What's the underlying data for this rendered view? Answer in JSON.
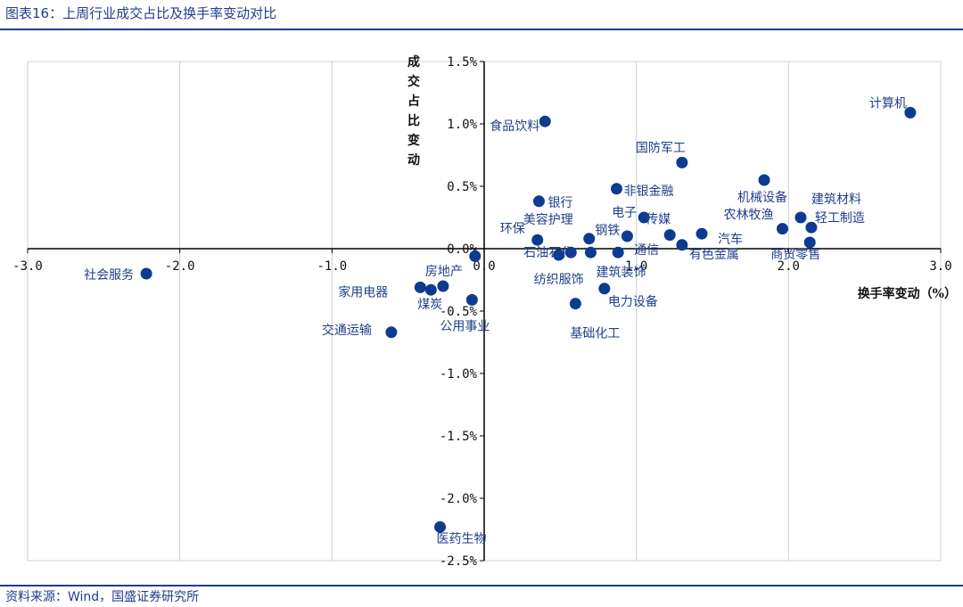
{
  "figure": {
    "title": "图表16：上周行业成交占比及换手率变动对比",
    "source": "资料来源：Wind，国盛证券研究所"
  },
  "colors": {
    "brand": "#1f3e8c",
    "point": "#0d3b8f",
    "grid": "#d0d0d0"
  },
  "chart_data": {
    "type": "scatter",
    "xlabel": "换手率变动（%）",
    "ylabel": "成交占比变动",
    "xlim": [
      -3.0,
      3.0
    ],
    "ylim": [
      -2.5,
      1.5
    ],
    "xticks": [
      -3.0,
      -2.0,
      -1.0,
      0.0,
      1.0,
      2.0,
      3.0
    ],
    "xtick_labels": [
      "-3.0",
      "-2.0",
      "-1.0",
      "0.0",
      "1.0",
      "2.0",
      "3.0"
    ],
    "yticks": [
      1.5,
      1.0,
      0.5,
      0.0,
      -0.5,
      -1.0,
      -1.5,
      -2.0,
      -2.5
    ],
    "ytick_labels": [
      "1.5%",
      "1.0%",
      "0.5%",
      "0.0%",
      "-0.5%",
      "-1.0%",
      "-1.5%",
      "-2.0%",
      "-2.5%"
    ],
    "grid": "vertical",
    "points": [
      {
        "name": "计算机",
        "x": 2.8,
        "y": 1.09
      },
      {
        "name": "食品饮料",
        "x": 0.4,
        "y": 1.02
      },
      {
        "name": "国防军工",
        "x": 1.3,
        "y": 0.69
      },
      {
        "name": "机械设备",
        "x": 1.84,
        "y": 0.55
      },
      {
        "name": "非银金融",
        "x": 0.87,
        "y": 0.48
      },
      {
        "name": "银行",
        "x": 0.36,
        "y": 0.38
      },
      {
        "name": "建筑材料",
        "x": 2.08,
        "y": 0.25
      },
      {
        "name": "电子",
        "x": 1.05,
        "y": 0.25
      },
      {
        "name": "轻工制造",
        "x": 2.15,
        "y": 0.17
      },
      {
        "name": "农林牧渔",
        "x": 1.96,
        "y": 0.16
      },
      {
        "name": "汽车",
        "x": 1.43,
        "y": 0.12
      },
      {
        "name": "传媒",
        "x": 1.22,
        "y": 0.11
      },
      {
        "name": "钢铁",
        "x": 0.94,
        "y": 0.1
      },
      {
        "name": "美容护理",
        "x": 0.69,
        "y": 0.08
      },
      {
        "name": "环保",
        "x": 0.35,
        "y": 0.07
      },
      {
        "name": "商贸零售",
        "x": 2.14,
        "y": 0.05
      },
      {
        "name": "有色金属",
        "x": 1.3,
        "y": 0.03
      },
      {
        "name": "通信",
        "x": 0.88,
        "y": -0.03
      },
      {
        "name": "建筑装饰",
        "x": 0.7,
        "y": -0.03
      },
      {
        "name": "石油石化",
        "x": 0.57,
        "y": -0.03
      },
      {
        "name": "纺织服饰",
        "x": 0.49,
        "y": -0.05
      },
      {
        "name": "基础化工",
        "x": -0.06,
        "y": -0.06
      },
      {
        "name": "电力设备",
        "x": 0.79,
        "y": -0.32
      },
      {
        "name": "房地产",
        "x": -0.27,
        "y": -0.3
      },
      {
        "name": "家用电器",
        "x": -0.42,
        "y": -0.31
      },
      {
        "name": "煤炭",
        "x": -0.35,
        "y": -0.33
      },
      {
        "name": "公用事业",
        "x": -0.08,
        "y": -0.41
      },
      {
        "name": "基础化工",
        "x": 0.6,
        "y": -0.44
      },
      {
        "name": "社会服务",
        "x": -2.22,
        "y": -0.2
      },
      {
        "name": "交通运输",
        "x": -0.61,
        "y": -0.67
      },
      {
        "name": "医药生物",
        "x": -0.29,
        "y": -2.23
      }
    ]
  }
}
